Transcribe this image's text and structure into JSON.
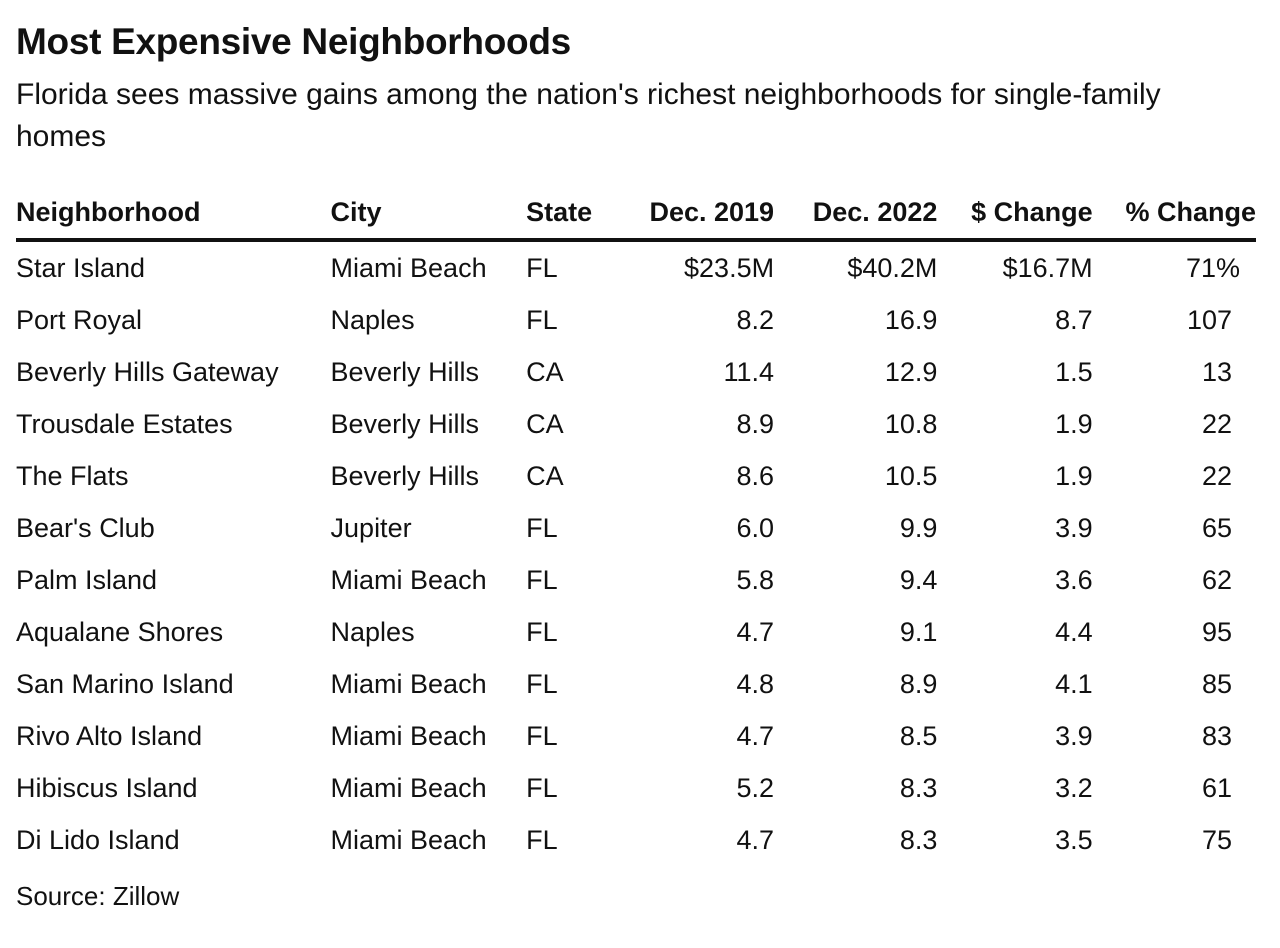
{
  "title": "Most Expensive Neighborhoods",
  "subtitle": "Florida sees massive gains among the nation's richest neighborhoods for single-family homes",
  "source": "Source: Zillow",
  "chart_data": {
    "type": "table",
    "columns": [
      "Neighborhood",
      "City",
      "State",
      "Dec. 2019",
      "Dec. 2022",
      "$ Change",
      "% Change"
    ],
    "rows": [
      [
        "Star Island",
        "Miami Beach",
        "FL",
        "$23.5M",
        "$40.2M",
        "$16.7M",
        "71%"
      ],
      [
        "Port Royal",
        "Naples",
        "FL",
        "8.2",
        "16.9",
        "8.7",
        "107"
      ],
      [
        "Beverly Hills Gateway",
        "Beverly Hills",
        "CA",
        "11.4",
        "12.9",
        "1.5",
        "13"
      ],
      [
        "Trousdale Estates",
        "Beverly Hills",
        "CA",
        "8.9",
        "10.8",
        "1.9",
        "22"
      ],
      [
        "The Flats",
        "Beverly Hills",
        "CA",
        "8.6",
        "10.5",
        "1.9",
        "22"
      ],
      [
        "Bear's Club",
        "Jupiter",
        "FL",
        "6.0",
        "9.9",
        "3.9",
        "65"
      ],
      [
        "Palm Island",
        "Miami Beach",
        "FL",
        "5.8",
        "9.4",
        "3.6",
        "62"
      ],
      [
        "Aqualane Shores",
        "Naples",
        "FL",
        "4.7",
        "9.1",
        "4.4",
        "95"
      ],
      [
        "San Marino Island",
        "Miami Beach",
        "FL",
        "4.8",
        "8.9",
        "4.1",
        "85"
      ],
      [
        "Rivo Alto Island",
        "Miami Beach",
        "FL",
        "4.7",
        "8.5",
        "3.9",
        "83"
      ],
      [
        "Hibiscus Island",
        "Miami Beach",
        "FL",
        "5.2",
        "8.3",
        "3.2",
        "61"
      ],
      [
        "Di Lido Island",
        "Miami Beach",
        "FL",
        "4.7",
        "8.3",
        "3.5",
        "75"
      ]
    ]
  }
}
